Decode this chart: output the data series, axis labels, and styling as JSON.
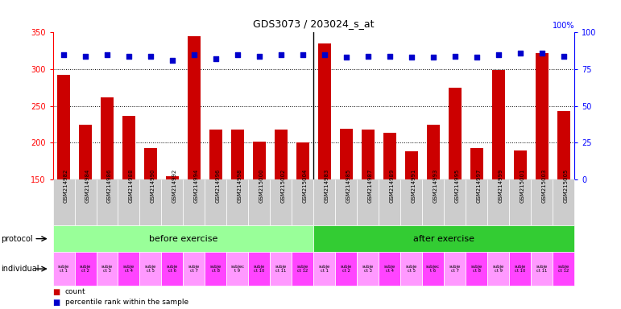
{
  "title": "GDS3073 / 203024_s_at",
  "gsm_labels": [
    "GSM214982",
    "GSM214984",
    "GSM214986",
    "GSM214988",
    "GSM214990",
    "GSM214992",
    "GSM214994",
    "GSM214996",
    "GSM214998",
    "GSM215000",
    "GSM215002",
    "GSM215004",
    "GSM214983",
    "GSM214985",
    "GSM214987",
    "GSM214989",
    "GSM214991",
    "GSM214993",
    "GSM214995",
    "GSM214997",
    "GSM214999",
    "GSM215001",
    "GSM215003",
    "GSM215005"
  ],
  "bar_values": [
    292,
    224,
    262,
    236,
    192,
    154,
    345,
    218,
    218,
    201,
    218,
    200,
    335,
    219,
    218,
    213,
    188,
    224,
    275,
    192,
    299,
    189,
    322,
    243
  ],
  "percentile_pct": [
    85,
    84,
    85,
    84,
    84,
    81,
    85,
    82,
    85,
    84,
    85,
    85,
    85,
    83,
    84,
    84,
    83,
    83,
    84,
    83,
    85,
    86,
    86,
    84
  ],
  "ylim_left": [
    150,
    350
  ],
  "ylim_right": [
    0,
    100
  ],
  "yticks_left": [
    150,
    200,
    250,
    300,
    350
  ],
  "yticks_right": [
    0,
    25,
    50,
    75,
    100
  ],
  "bar_color": "#cc0000",
  "percentile_color": "#0000cc",
  "plot_bg_color": "#ffffff",
  "xticklabel_bg": "#d0d0d0",
  "protocol_before_color": "#99ff99",
  "protocol_after_color": "#33cc33",
  "individual_colors": [
    "#ff99ff",
    "#ff44ff"
  ],
  "protocol_before_label": "before exercise",
  "protocol_after_label": "after exercise",
  "individual_labels_before": [
    "subje\nct 1",
    "subje\nct 2",
    "subje\nct 3",
    "subje\nct 4",
    "subje\nct 5",
    "subje\nct 6",
    "subje\nct 7",
    "subje\nct 8",
    "subjec\nt 9",
    "subje\nct 10",
    "subje\nct 11",
    "subje\nct 12"
  ],
  "individual_labels_after": [
    "subje\nct 1",
    "subje\nct 2",
    "subje\nct 3",
    "subje\nct 4",
    "subje\nct 5",
    "subjec\nt 6",
    "subje\nct 7",
    "subje\nct 8",
    "subje\nct 9",
    "subje\nct 10",
    "subje\nct 11",
    "subje\nct 12"
  ],
  "n_before": 12,
  "n_after": 12,
  "dotted_grid": [
    200,
    250,
    300
  ],
  "legend_count_color": "#cc0000",
  "legend_percentile_color": "#0000cc",
  "legend_count_label": "count",
  "legend_percentile_label": "percentile rank within the sample"
}
